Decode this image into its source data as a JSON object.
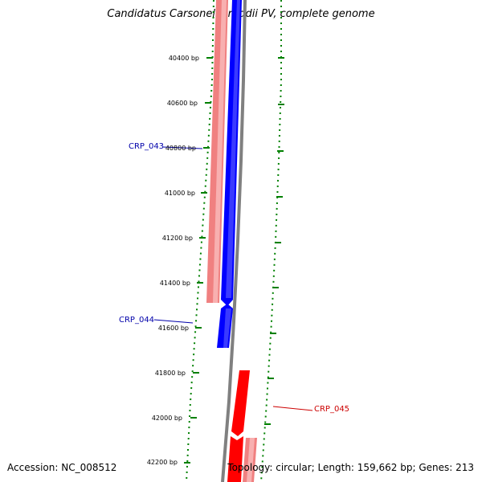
{
  "title": "Candidatus Carsonella ruddii PV, complete genome",
  "accession_text": "Accession: NC_008512",
  "summary_text": "Topology: circular; Length: 159,662 bp; Genes: 213",
  "colors": {
    "forward_cds": "#0000ff",
    "reverse_cds": "#ff0000",
    "forward_label": "#0000aa",
    "reverse_label": "#cc0000",
    "backbone": "#888888",
    "gc_dots": "#008000",
    "tick_text": "#000000"
  },
  "ticks": [
    {
      "label": "40400 bp",
      "bp": 40400
    },
    {
      "label": "40600 bp",
      "bp": 40600
    },
    {
      "label": "40800 bp",
      "bp": 40800
    },
    {
      "label": "41000 bp",
      "bp": 41000
    },
    {
      "label": "41200 bp",
      "bp": 41200
    },
    {
      "label": "41400 bp",
      "bp": 41400
    },
    {
      "label": "41600 bp",
      "bp": 41600
    },
    {
      "label": "41800 bp",
      "bp": 41800
    },
    {
      "label": "42000 bp",
      "bp": 42000
    },
    {
      "label": "42200 bp",
      "bp": 42200
    }
  ],
  "genes": [
    {
      "name": "CRP_043",
      "strand": "forward"
    },
    {
      "name": "CRP_044",
      "strand": "forward"
    },
    {
      "name": "CRP_045",
      "strand": "reverse"
    }
  ]
}
